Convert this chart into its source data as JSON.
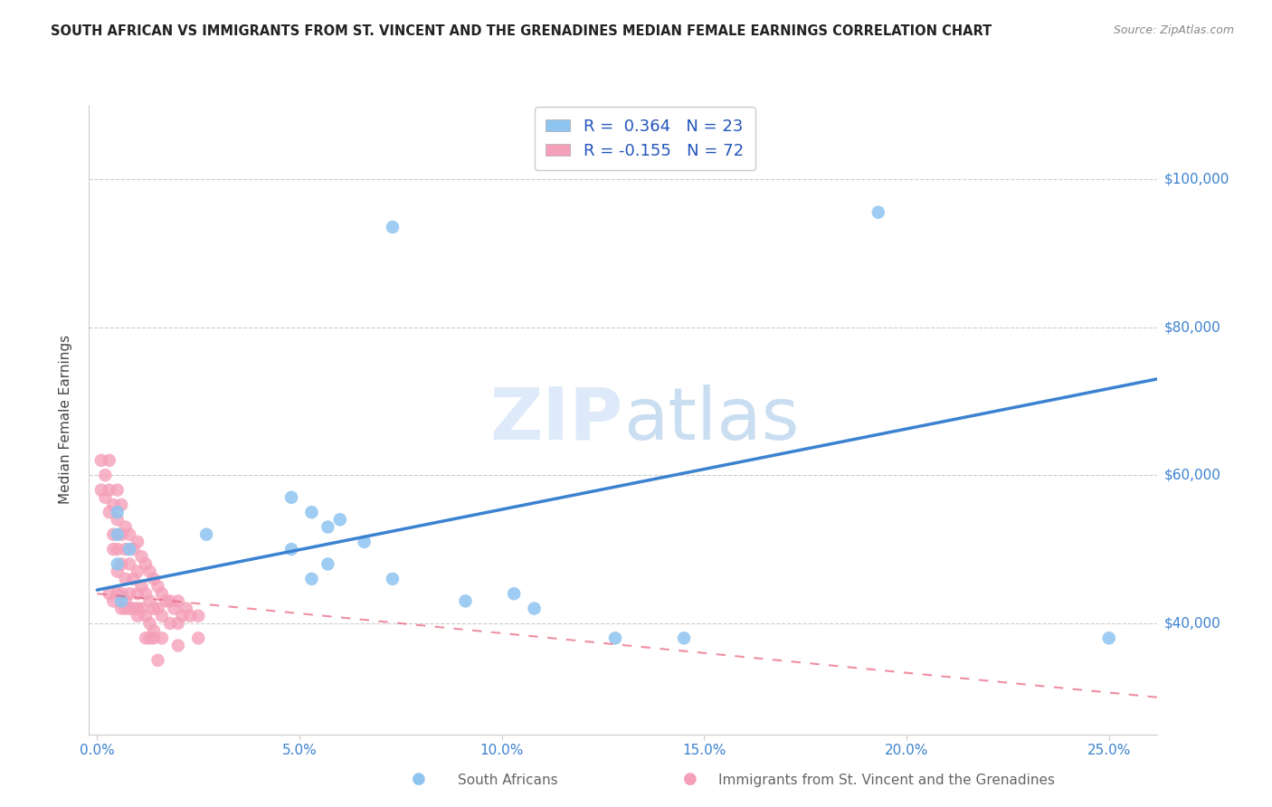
{
  "title": "SOUTH AFRICAN VS IMMIGRANTS FROM ST. VINCENT AND THE GRENADINES MEDIAN FEMALE EARNINGS CORRELATION CHART",
  "source": "Source: ZipAtlas.com",
  "ylabel": "Median Female Earnings",
  "xlabel_ticks": [
    "0.0%",
    "5.0%",
    "10.0%",
    "15.0%",
    "20.0%",
    "25.0%"
  ],
  "xlabel_vals": [
    0.0,
    0.05,
    0.1,
    0.15,
    0.2,
    0.25
  ],
  "ylabel_ticks": [
    "$40,000",
    "$60,000",
    "$80,000",
    "$100,000"
  ],
  "ylabel_vals": [
    40000,
    60000,
    80000,
    100000
  ],
  "ylim": [
    25000,
    110000
  ],
  "xlim": [
    -0.002,
    0.262
  ],
  "blue_R": 0.364,
  "blue_N": 23,
  "pink_R": -0.155,
  "pink_N": 72,
  "blue_color": "#8EC4F0",
  "pink_color": "#F5A0BA",
  "blue_line_color": "#3B82D0",
  "pink_line_color": "#E8607A",
  "watermark_part1": "ZIP",
  "watermark_part2": "atlas",
  "blue_line_x0": 0.0,
  "blue_line_x1": 0.262,
  "blue_line_y0": 44500,
  "blue_line_y1": 73000,
  "pink_line_x0": 0.0,
  "pink_line_x1": 0.262,
  "pink_line_y0": 44000,
  "pink_line_y1": 30000,
  "blue_scatter_x": [
    0.073,
    0.193,
    0.005,
    0.005,
    0.008,
    0.057,
    0.053,
    0.048,
    0.005,
    0.027,
    0.006,
    0.066,
    0.06,
    0.048,
    0.053,
    0.057,
    0.073,
    0.091,
    0.103,
    0.108,
    0.128,
    0.145,
    0.25
  ],
  "blue_scatter_y": [
    93500,
    95500,
    55000,
    52000,
    50000,
    53000,
    55000,
    57000,
    48000,
    52000,
    43000,
    51000,
    54000,
    50000,
    46000,
    48000,
    46000,
    43000,
    44000,
    42000,
    38000,
    38000,
    38000
  ],
  "pink_scatter_x": [
    0.001,
    0.001,
    0.002,
    0.002,
    0.003,
    0.003,
    0.003,
    0.004,
    0.004,
    0.004,
    0.005,
    0.005,
    0.005,
    0.005,
    0.006,
    0.006,
    0.006,
    0.006,
    0.007,
    0.007,
    0.007,
    0.007,
    0.008,
    0.008,
    0.008,
    0.009,
    0.009,
    0.01,
    0.01,
    0.01,
    0.01,
    0.011,
    0.011,
    0.012,
    0.012,
    0.012,
    0.013,
    0.013,
    0.013,
    0.014,
    0.014,
    0.014,
    0.015,
    0.015,
    0.016,
    0.016,
    0.016,
    0.017,
    0.018,
    0.018,
    0.019,
    0.02,
    0.02,
    0.02,
    0.021,
    0.022,
    0.023,
    0.025,
    0.025,
    0.003,
    0.004,
    0.005,
    0.006,
    0.007,
    0.008,
    0.009,
    0.01,
    0.011,
    0.012,
    0.013,
    0.014,
    0.015
  ],
  "pink_scatter_y": [
    62000,
    58000,
    60000,
    57000,
    62000,
    58000,
    55000,
    56000,
    52000,
    50000,
    58000,
    54000,
    50000,
    47000,
    56000,
    52000,
    48000,
    44000,
    53000,
    50000,
    46000,
    43000,
    52000,
    48000,
    44000,
    50000,
    46000,
    51000,
    47000,
    44000,
    41000,
    49000,
    45000,
    48000,
    44000,
    41000,
    47000,
    43000,
    40000,
    46000,
    42000,
    39000,
    45000,
    42000,
    44000,
    41000,
    38000,
    43000,
    43000,
    40000,
    42000,
    43000,
    40000,
    37000,
    41000,
    42000,
    41000,
    41000,
    38000,
    44000,
    43000,
    44000,
    42000,
    42000,
    42000,
    42000,
    42000,
    42000,
    38000,
    38000,
    38000,
    35000
  ]
}
